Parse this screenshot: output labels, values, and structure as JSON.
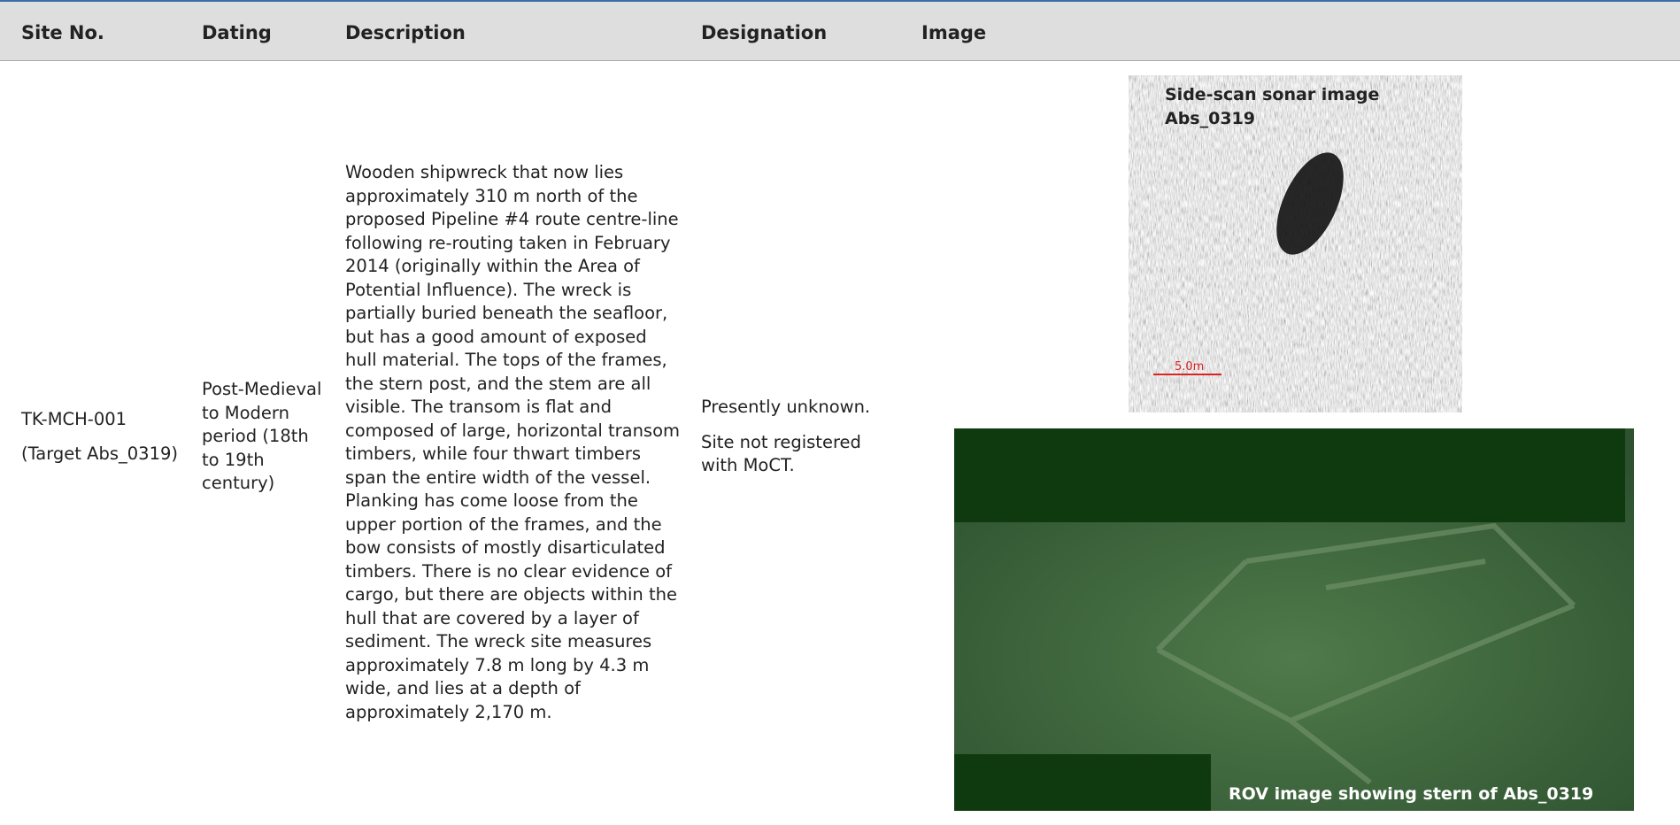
{
  "header": {
    "columns": [
      "Site No.",
      "Dating",
      "Description",
      "Designation",
      "Image"
    ]
  },
  "rows": [
    {
      "site": [
        "TK-MCH-001",
        "(Target Abs_0319)"
      ],
      "dating": "Post-Medieval to Modern period (18th to 19th century)",
      "description": "Wooden shipwreck that now lies approximately 310 m north of the proposed Pipeline #4 route centre-line following re-routing taken in February 2014 (originally within the Area of Potential Influence). The wreck is partially buried beneath the seafloor, but has a good amount of exposed hull material. The tops of the frames, the stern post, and the stem are all visible. The transom is flat and composed of large, horizontal transom timbers, while four thwart timbers span the entire width of the vessel. Planking has come loose from the upper portion of the frames, and the bow consists of mostly disarticulated timbers. There is no clear evidence of cargo, but there are objects within the hull that are covered by a layer of sediment. The wreck site measures approximately 7.8 m long by 4.3 m wide, and lies at a depth of approximately 2,170 m.",
      "designation": [
        "Presently unknown.",
        "Site not registered with MoCT."
      ],
      "images": {
        "sonar_caption": "Side-scan sonar image Abs_0319",
        "scale_label": "5.0m",
        "rov_caption": "ROV image showing stern of Abs_0319"
      }
    }
  ]
}
